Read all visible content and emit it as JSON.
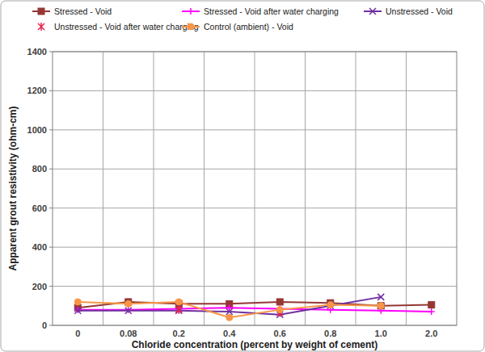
{
  "chart_data": {
    "type": "line",
    "x_label": "Chloride concentration (percent by weight of cement)",
    "y_label": "Apparent grout resistivity (ohm-cm)",
    "categories": [
      "0",
      "0.08",
      "0.2",
      "0.4",
      "0.6",
      "0.8",
      "1.0",
      "2.0"
    ],
    "series": [
      {
        "name": "Stressed - Void",
        "color": "#953735",
        "marker": "square",
        "line_style": "solid",
        "values": [
          90,
          120,
          110,
          110,
          120,
          115,
          100,
          105
        ]
      },
      {
        "name": "Stressed - Void after water charging",
        "color": "#ff00ff",
        "marker": "plus",
        "line_style": "solid",
        "values": [
          80,
          80,
          85,
          90,
          85,
          80,
          75,
          70
        ]
      },
      {
        "name": "Unstressed - Void",
        "color": "#7030a0",
        "marker": "x",
        "line_style": "solid",
        "values": [
          75,
          75,
          75,
          70,
          55,
          100,
          145,
          null
        ]
      },
      {
        "name": "Unstressed - Void after water charging",
        "color": "#e8244f",
        "marker": "asterisk",
        "line_style": "none",
        "values": [
          null,
          null,
          80,
          null,
          65,
          null,
          null,
          null
        ]
      },
      {
        "name": "Control (ambient) - Void",
        "color": "#f79646",
        "marker": "circle",
        "line_style": "solid",
        "values": [
          120,
          110,
          120,
          40,
          80,
          105,
          100,
          null
        ]
      }
    ],
    "ylim": [
      0,
      1400
    ],
    "yticks": [
      0,
      200,
      400,
      600,
      800,
      1000,
      1200,
      1400
    ],
    "grid": true,
    "legend": "top"
  }
}
